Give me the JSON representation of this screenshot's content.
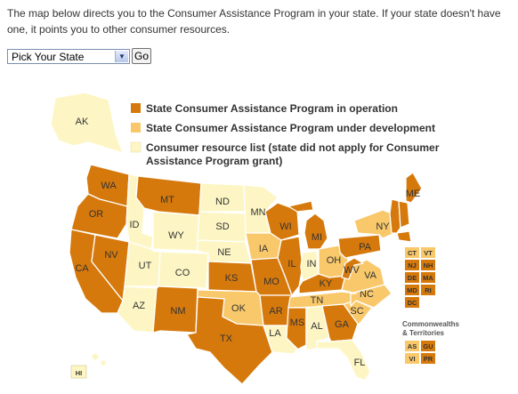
{
  "intro_text": "The map below directs you to the Consumer Assistance Program in your state. If your state doesn't have one, it points you to other consumer resources.",
  "state_picker": {
    "selected": "Pick Your State",
    "go_label": "Go"
  },
  "legend": {
    "operation": "State Consumer Assistance Program in operation",
    "development": "State Consumer Assistance Program under development",
    "resource_line1": "Consumer resource list (state did not apply for Consumer",
    "resource_line2": "Assistance Program grant)"
  },
  "colors": {
    "operation": "#d6790c",
    "development": "#f8c86a",
    "resource": "#fdf6c4"
  },
  "states": {
    "AK": "AK",
    "HI": "HI",
    "WA": "WA",
    "OR": "OR",
    "CA": "CA",
    "NV": "NV",
    "ID": "ID",
    "MT": "MT",
    "WY": "WY",
    "UT": "UT",
    "AZ": "AZ",
    "CO": "CO",
    "NM": "NM",
    "ND": "ND",
    "SD": "SD",
    "NE": "NE",
    "KS": "KS",
    "OK": "OK",
    "TX": "TX",
    "MN": "MN",
    "IA": "IA",
    "MO": "MO",
    "AR": "AR",
    "LA": "LA",
    "WI": "WI",
    "IL": "IL",
    "MI": "MI",
    "IN": "IN",
    "OH": "OH",
    "KY": "KY",
    "TN": "TN",
    "MS": "MS",
    "AL": "AL",
    "GA": "GA",
    "FL": "FL",
    "SC": "SC",
    "NC": "NC",
    "VA": "VA",
    "WV": "WV",
    "PA": "PA",
    "NY": "NY",
    "ME": "ME"
  },
  "small_states": {
    "CT": "CT",
    "VT": "VT",
    "NJ": "NJ",
    "NH": "NH",
    "DE": "DE",
    "MA": "MA",
    "MD": "MD",
    "RI": "RI",
    "DC": "DC"
  },
  "territories": {
    "title_line1": "Commonwealths",
    "title_line2": "& Territories",
    "AS": "AS",
    "GU": "GU",
    "VI": "VI",
    "PR": "PR"
  }
}
